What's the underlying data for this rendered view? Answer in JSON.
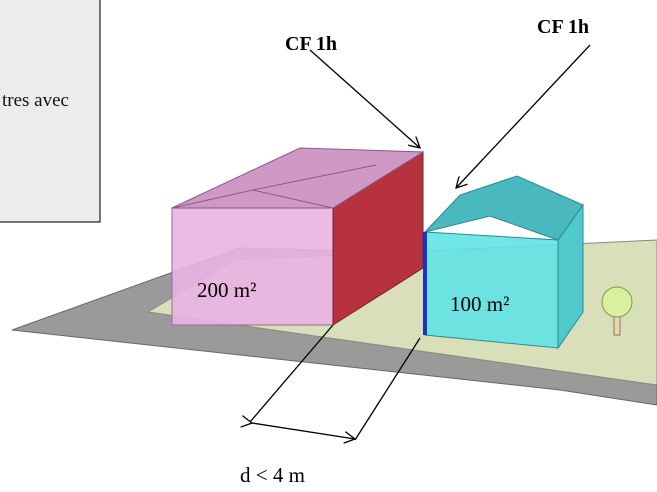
{
  "callout_box": {
    "text": "tres avec"
  },
  "fire_ratings": [
    "CF 1h",
    "CF 1h"
  ],
  "buildings": [
    {
      "area_label": "200 m²"
    },
    {
      "area_label": "100 m²"
    }
  ],
  "distance_label": "d < 4 m"
}
